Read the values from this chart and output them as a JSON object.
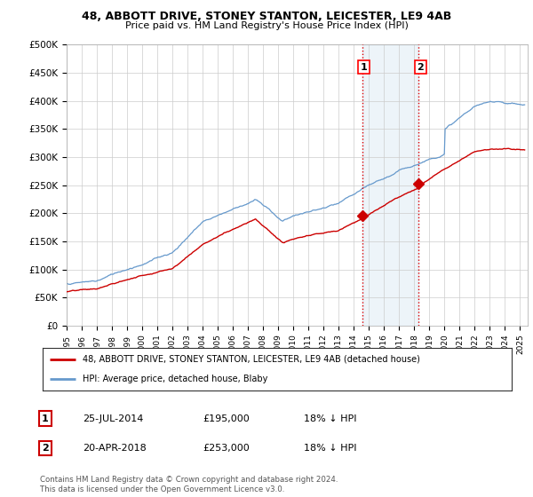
{
  "title1": "48, ABBOTT DRIVE, STONEY STANTON, LEICESTER, LE9 4AB",
  "title2": "Price paid vs. HM Land Registry's House Price Index (HPI)",
  "ylabel_ticks": [
    "£0",
    "£50K",
    "£100K",
    "£150K",
    "£200K",
    "£250K",
    "£300K",
    "£350K",
    "£400K",
    "£450K",
    "£500K"
  ],
  "ytick_values": [
    0,
    50000,
    100000,
    150000,
    200000,
    250000,
    300000,
    350000,
    400000,
    450000,
    500000
  ],
  "ylim": [
    0,
    500000
  ],
  "xlim_start": 1995.0,
  "xlim_end": 2025.5,
  "hpi_color": "#6699cc",
  "price_color": "#cc0000",
  "sale1_date": 2014.56,
  "sale1_price": 195000,
  "sale2_date": 2018.3,
  "sale2_price": 253000,
  "legend_line1": "48, ABBOTT DRIVE, STONEY STANTON, LEICESTER, LE9 4AB (detached house)",
  "legend_line2": "HPI: Average price, detached house, Blaby",
  "table_row1": [
    "1",
    "25-JUL-2014",
    "£195,000",
    "18% ↓ HPI"
  ],
  "table_row2": [
    "2",
    "20-APR-2018",
    "£253,000",
    "18% ↓ HPI"
  ],
  "footnote": "Contains HM Land Registry data © Crown copyright and database right 2024.\nThis data is licensed under the Open Government Licence v3.0.",
  "bg_color": "#ffffff",
  "plot_bg_color": "#ffffff",
  "grid_color": "#cccccc",
  "shade_color": "#cce0f0"
}
